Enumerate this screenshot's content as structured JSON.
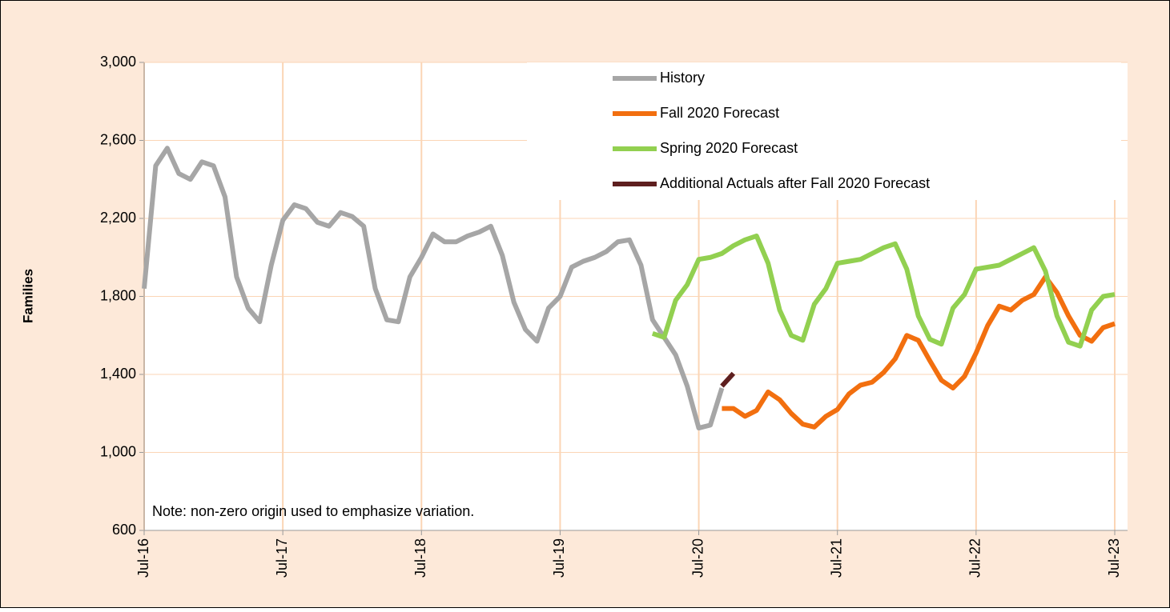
{
  "chart_data": {
    "type": "line",
    "y_label": "Families",
    "annotation": "Note: non-zero origin used to emphasize variation.",
    "categories": [
      "Jul-16",
      null,
      null,
      null,
      null,
      null,
      null,
      null,
      null,
      null,
      null,
      null,
      "Jul-17",
      null,
      null,
      null,
      null,
      null,
      null,
      null,
      null,
      null,
      null,
      null,
      "Jul-18",
      null,
      null,
      null,
      null,
      null,
      null,
      null,
      null,
      null,
      null,
      null,
      "Jul-19",
      null,
      null,
      null,
      null,
      null,
      null,
      null,
      null,
      null,
      null,
      null,
      "Jul-20",
      null,
      null,
      null,
      null,
      null,
      null,
      null,
      null,
      null,
      null,
      null,
      "Jul-21",
      null,
      null,
      null,
      null,
      null,
      null,
      null,
      null,
      null,
      null,
      null,
      "Jul-22",
      null,
      null,
      null,
      null,
      null,
      null,
      null,
      null,
      null,
      null,
      null,
      "Jul-23"
    ],
    "series": [
      {
        "name": "History",
        "color": "#a6a6a6",
        "values": [
          1840,
          2470,
          2560,
          2430,
          2400,
          2490,
          2470,
          2310,
          1900,
          1740,
          1670,
          1960,
          2190,
          2270,
          2250,
          2180,
          2160,
          2230,
          2210,
          2160,
          1840,
          1680,
          1670,
          1900,
          2000,
          2120,
          2080,
          2080,
          2110,
          2130,
          2160,
          2010,
          1770,
          1630,
          1570,
          1740,
          1800,
          1950,
          1980,
          2000,
          2030,
          2080,
          2090,
          1960,
          1680,
          1590,
          1500,
          1340,
          1125,
          1140,
          1330,
          null,
          null,
          null,
          null,
          null,
          null,
          null,
          null,
          null,
          null,
          null,
          null,
          null,
          null,
          null,
          null,
          null,
          null,
          null,
          null,
          null,
          null,
          null,
          null,
          null,
          null,
          null,
          null,
          null,
          null,
          null,
          null,
          null,
          null
        ]
      },
      {
        "name": "Fall 2020 Forecast",
        "color": "#f26f0f",
        "values": [
          null,
          null,
          null,
          null,
          null,
          null,
          null,
          null,
          null,
          null,
          null,
          null,
          null,
          null,
          null,
          null,
          null,
          null,
          null,
          null,
          null,
          null,
          null,
          null,
          null,
          null,
          null,
          null,
          null,
          null,
          null,
          null,
          null,
          null,
          null,
          null,
          null,
          null,
          null,
          null,
          null,
          null,
          null,
          null,
          null,
          null,
          null,
          null,
          null,
          null,
          1225,
          1225,
          1185,
          1215,
          1310,
          1270,
          1200,
          1145,
          1130,
          1185,
          1220,
          1300,
          1345,
          1360,
          1410,
          1480,
          1600,
          1575,
          1470,
          1370,
          1330,
          1390,
          1510,
          1650,
          1750,
          1730,
          1780,
          1810,
          1900,
          1820,
          1700,
          1600,
          1570,
          1640,
          1660
        ]
      },
      {
        "name": "Spring 2020 Forecast",
        "color": "#92d050",
        "values": [
          null,
          null,
          null,
          null,
          null,
          null,
          null,
          null,
          null,
          null,
          null,
          null,
          null,
          null,
          null,
          null,
          null,
          null,
          null,
          null,
          null,
          null,
          null,
          null,
          null,
          null,
          null,
          null,
          null,
          null,
          null,
          null,
          null,
          null,
          null,
          null,
          null,
          null,
          null,
          null,
          null,
          null,
          null,
          null,
          1610,
          1590,
          1780,
          1860,
          1990,
          2000,
          2020,
          2060,
          2090,
          2110,
          1970,
          1730,
          1600,
          1575,
          1760,
          1840,
          1970,
          1980,
          1990,
          2020,
          2050,
          2070,
          1940,
          1700,
          1580,
          1555,
          1740,
          1810,
          1940,
          1950,
          1960,
          1990,
          2020,
          2050,
          1930,
          1700,
          1565,
          1545,
          1730,
          1800,
          1810
        ]
      },
      {
        "name": "Additional Actuals after Fall 2020 Forecast",
        "color": "#5e1f1f",
        "values": [
          null,
          null,
          null,
          null,
          null,
          null,
          null,
          null,
          null,
          null,
          null,
          null,
          null,
          null,
          null,
          null,
          null,
          null,
          null,
          null,
          null,
          null,
          null,
          null,
          null,
          null,
          null,
          null,
          null,
          null,
          null,
          null,
          null,
          null,
          null,
          null,
          null,
          null,
          null,
          null,
          null,
          null,
          null,
          null,
          null,
          null,
          null,
          null,
          null,
          null,
          1340,
          1405,
          null,
          null,
          null,
          null,
          null,
          null,
          null,
          null,
          null,
          null,
          null,
          null,
          null,
          null,
          null,
          null,
          null,
          null,
          null,
          null,
          null,
          null,
          null,
          null,
          null,
          null,
          null,
          null,
          null,
          null,
          null,
          null,
          null
        ]
      }
    ],
    "ylim": [
      600,
      3000
    ],
    "yticks": [
      600,
      {
        "value": 1000,
        "label": "1,000"
      },
      {
        "value": 1400,
        "label": "1,400"
      },
      {
        "value": 1800,
        "label": "1,800"
      },
      {
        "value": 2200,
        "label": "2,200"
      },
      {
        "value": 2600,
        "label": "2,600"
      },
      {
        "value": 3000,
        "label": "3,000"
      }
    ],
    "grid": true,
    "legend": "upper right"
  }
}
